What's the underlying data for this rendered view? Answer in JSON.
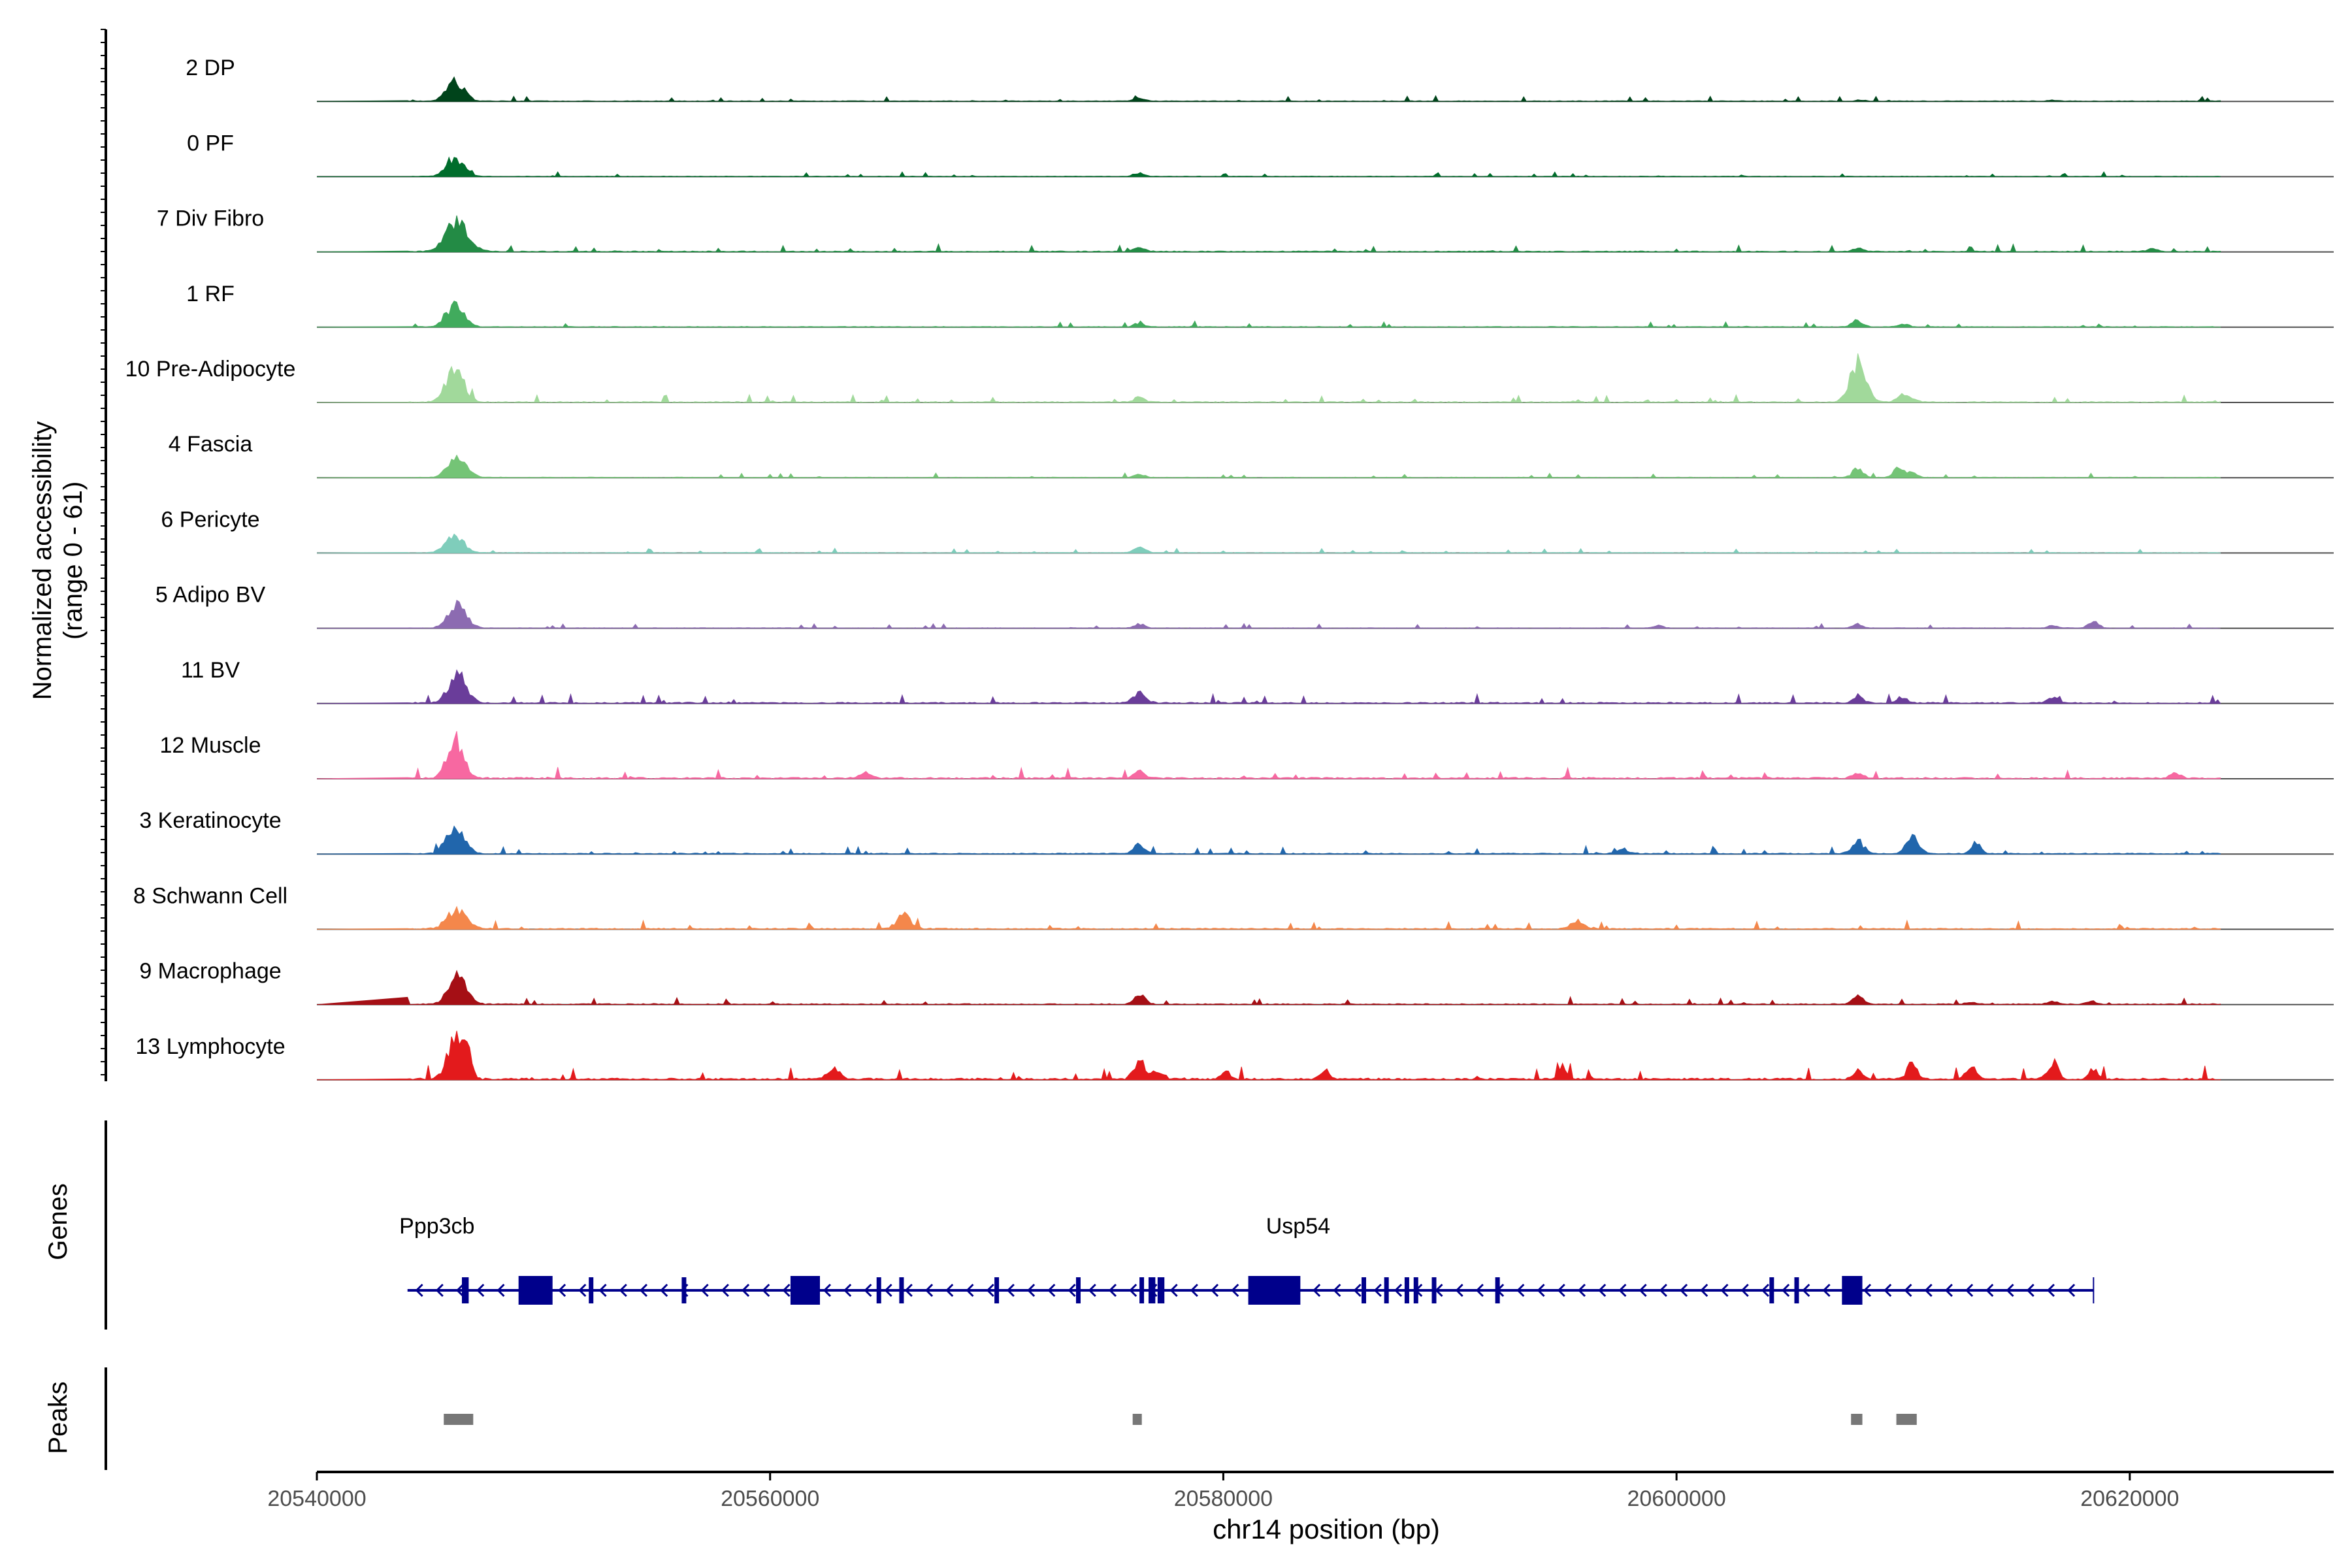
{
  "chart_data": {
    "type": "coverage-track",
    "chromosome": "chr14",
    "xlabel": "chr14 position (bp)",
    "xlim": [
      20540000,
      20629000
    ],
    "xticks": [
      20540000,
      20560000,
      20580000,
      20600000,
      20620000
    ],
    "xtick_labels": [
      "20540000",
      "20560000",
      "20580000",
      "20600000",
      "20620000"
    ],
    "ylabel_line1": "Normalized accessibility",
    "ylabel_line2": "(range 0 - 61)",
    "yrange": [
      0,
      61
    ],
    "tracks": [
      {
        "name": "2 DP",
        "color": "#00441b",
        "peaks": [
          [
            20546100,
            20,
            1.0
          ],
          [
            20576300,
            3,
            0.7
          ],
          [
            20608100,
            1,
            0.6
          ],
          [
            20616600,
            1,
            0.6
          ]
        ],
        "noise": 0.7
      },
      {
        "name": "0 PF",
        "color": "#006d2c",
        "peaks": [
          [
            20546100,
            18,
            1.0
          ],
          [
            20576300,
            4,
            0.6
          ]
        ],
        "noise": 0.6
      },
      {
        "name": "7 Div Fibro",
        "color": "#238b45",
        "peaks": [
          [
            20546200,
            32,
            1.2
          ],
          [
            20576300,
            4,
            0.6
          ],
          [
            20608000,
            3,
            0.6
          ],
          [
            20621000,
            3,
            0.6
          ]
        ],
        "noise": 1.0
      },
      {
        "name": "1 RF",
        "color": "#41ab5d",
        "peaks": [
          [
            20546100,
            22,
            1.0
          ],
          [
            20576300,
            4,
            0.6
          ],
          [
            20608000,
            7,
            0.6
          ],
          [
            20610000,
            3,
            0.6
          ]
        ],
        "noise": 0.8
      },
      {
        "name": "10 Pre-Adipocyte",
        "color": "#a1d99b",
        "peaks": [
          [
            20546100,
            34,
            1.0
          ],
          [
            20576300,
            5,
            0.6
          ],
          [
            20608000,
            40,
            0.9
          ],
          [
            20610100,
            8,
            0.8
          ]
        ],
        "noise": 1.0
      },
      {
        "name": "4 Fascia",
        "color": "#74c476",
        "peaks": [
          [
            20546200,
            25,
            1.0
          ],
          [
            20576300,
            3,
            0.6
          ],
          [
            20608000,
            9,
            0.6
          ],
          [
            20609800,
            9,
            0.6
          ],
          [
            20610400,
            6,
            0.5
          ]
        ],
        "noise": 0.6
      },
      {
        "name": "6 Pericyte",
        "color": "#7fcdbb",
        "peaks": [
          [
            20546100,
            18,
            1.0
          ],
          [
            20576300,
            7,
            0.6
          ]
        ],
        "noise": 0.6
      },
      {
        "name": "5 Adipo BV",
        "color": "#8c6bb1",
        "peaks": [
          [
            20546200,
            24,
            1.0
          ],
          [
            20576300,
            4,
            0.6
          ],
          [
            20599200,
            3,
            0.5
          ],
          [
            20608000,
            4,
            0.6
          ],
          [
            20616600,
            3,
            0.5
          ],
          [
            20618400,
            6,
            0.6
          ]
        ],
        "noise": 0.6
      },
      {
        "name": "11 BV",
        "color": "#6a3d9a",
        "peaks": [
          [
            20546200,
            30,
            1.0
          ],
          [
            20576300,
            10,
            0.7
          ],
          [
            20608000,
            6,
            0.6
          ],
          [
            20610000,
            5,
            0.6
          ],
          [
            20616600,
            6,
            0.6
          ]
        ],
        "noise": 1.3
      },
      {
        "name": "12 Muscle",
        "color": "#f768a1",
        "peaks": [
          [
            20546100,
            40,
            0.9
          ],
          [
            20564200,
            6,
            0.6
          ],
          [
            20576300,
            8,
            0.6
          ],
          [
            20608000,
            5,
            0.6
          ],
          [
            20622000,
            5,
            0.6
          ]
        ],
        "noise": 1.5
      },
      {
        "name": "3 Keratinocyte",
        "color": "#2166ac",
        "peaks": [
          [
            20546100,
            28,
            1.0
          ],
          [
            20576300,
            10,
            0.6
          ],
          [
            20597600,
            4,
            0.6
          ],
          [
            20608000,
            12,
            0.7
          ],
          [
            20610400,
            18,
            0.7
          ],
          [
            20613200,
            13,
            0.5
          ]
        ],
        "noise": 1.0
      },
      {
        "name": "8 Schwann Cell",
        "color": "#f4874b",
        "peaks": [
          [
            20546200,
            20,
            1.1
          ],
          [
            20565900,
            14,
            0.8
          ],
          [
            20595600,
            8,
            0.7
          ]
        ],
        "noise": 1.2
      },
      {
        "name": "9 Macrophage",
        "color": "#a50f15",
        "peaks": [
          [
            20546200,
            28,
            1.0
          ],
          [
            20576300,
            10,
            0.6
          ],
          [
            20608000,
            8,
            0.6
          ],
          [
            20613000,
            3,
            0.5
          ],
          [
            20616600,
            3,
            0.5
          ],
          [
            20618300,
            3,
            0.5
          ]
        ],
        "noise": 1.0
      },
      {
        "name": "13 Lymphocyte",
        "color": "#e31a1c",
        "peaks": [
          [
            20546100,
            40,
            0.9
          ],
          [
            20546600,
            30,
            0.5
          ],
          [
            20562800,
            10,
            0.7
          ],
          [
            20576300,
            20,
            0.6
          ],
          [
            20577100,
            9,
            0.6
          ],
          [
            20580100,
            9,
            0.5
          ],
          [
            20584500,
            10,
            0.5
          ],
          [
            20595000,
            9,
            0.5
          ],
          [
            20608000,
            8,
            0.5
          ],
          [
            20610400,
            20,
            0.5
          ],
          [
            20613000,
            12,
            0.6
          ],
          [
            20616600,
            18,
            0.6
          ],
          [
            20618400,
            10,
            0.5
          ]
        ],
        "noise": 1.8
      }
    ],
    "genes_label": "Genes",
    "genes": [
      {
        "name": "Ppp3cb",
        "label_x": 20545300,
        "strand": "-",
        "start": 20544000,
        "end": 20546700
      },
      {
        "name": "Usp54",
        "label_x": 20583300,
        "strand": "-",
        "start": 20546700,
        "end": 20618400
      }
    ],
    "gene_color": "#00008b",
    "exons": [
      [
        20546400,
        20546700
      ],
      [
        20548900,
        20550400
      ],
      [
        20552000,
        20552200
      ],
      [
        20556100,
        20556300
      ],
      [
        20560900,
        20562200
      ],
      [
        20564700,
        20564900
      ],
      [
        20565700,
        20565900
      ],
      [
        20569900,
        20570100
      ],
      [
        20573500,
        20573600
      ],
      [
        20576300,
        20576500
      ],
      [
        20576700,
        20577000
      ],
      [
        20577100,
        20577400
      ],
      [
        20581100,
        20583400
      ],
      [
        20586100,
        20586300
      ],
      [
        20587100,
        20587300
      ],
      [
        20588000,
        20588200
      ],
      [
        20588400,
        20588600
      ],
      [
        20589200,
        20589400
      ],
      [
        20592000,
        20592200
      ],
      [
        20604100,
        20604300
      ],
      [
        20605200,
        20605400
      ],
      [
        20607300,
        20608200
      ]
    ],
    "peaks_label": "Peaks",
    "peak_color": "#777777",
    "peak_regions": [
      [
        20545600,
        20546900
      ],
      [
        20576000,
        20576400
      ],
      [
        20607700,
        20608200
      ],
      [
        20609700,
        20610600
      ]
    ]
  }
}
